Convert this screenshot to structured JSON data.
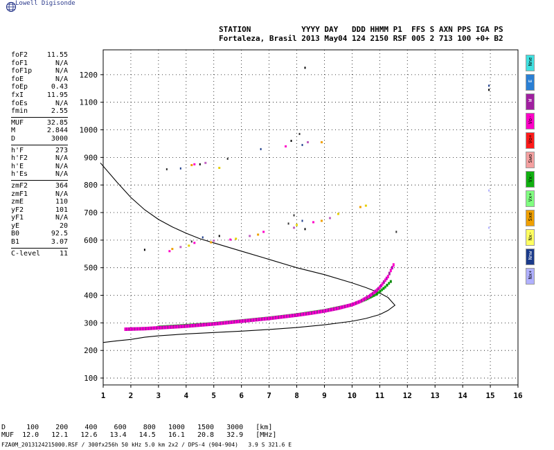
{
  "brand": "Lowell Digisonde",
  "header": {
    "line1": "STATION           YYYY DAY   DDD HHMM P1  FFS S AXN PPS IGA PS",
    "line2": "Fortaleza, Brasil 2013 May04 124 2150 RSF 005 2 713 100 +0+ B2"
  },
  "params": [
    {
      "k": "foF2",
      "v": "11.55"
    },
    {
      "k": "foF1",
      "v": "N/A"
    },
    {
      "k": "foF1p",
      "v": "N/A"
    },
    {
      "k": "foE",
      "v": "N/A"
    },
    {
      "k": "foEp",
      "v": "0.43"
    },
    {
      "k": "fxI",
      "v": "11.95"
    },
    {
      "k": "foEs",
      "v": "N/A"
    },
    {
      "k": "fmin",
      "v": "2.55"
    },
    {
      "sep": true
    },
    {
      "k": "MUF",
      "v": "32.85"
    },
    {
      "k": "M",
      "v": "2.844"
    },
    {
      "k": "D",
      "v": "3000"
    },
    {
      "sep": true
    },
    {
      "k": "h'F",
      "v": "273"
    },
    {
      "k": "h'F2",
      "v": "N/A"
    },
    {
      "k": "h'E",
      "v": "N/A"
    },
    {
      "k": "h'Es",
      "v": "N/A"
    },
    {
      "sep": true
    },
    {
      "k": "zmF2",
      "v": "364"
    },
    {
      "k": "zmF1",
      "v": "N/A"
    },
    {
      "k": "zmE",
      "v": "110"
    },
    {
      "k": "yF2",
      "v": "101"
    },
    {
      "k": "yF1",
      "v": "N/A"
    },
    {
      "k": "yE",
      "v": "20"
    },
    {
      "k": "B0",
      "v": "92.5"
    },
    {
      "k": "B1",
      "v": "3.07"
    },
    {
      "sep": true
    },
    {
      "k": "C-level",
      "v": "11"
    }
  ],
  "legend": [
    {
      "label": "Nne",
      "color": "#40e0e0"
    },
    {
      "label": "E",
      "color": "#2a7fd4"
    },
    {
      "label": "W",
      "color": "#a020a0"
    },
    {
      "label": "Vo-",
      "color": "#ff00c8"
    },
    {
      "label": "Vo+",
      "color": "#ff1a1a"
    },
    {
      "label": "Swo",
      "color": "#f4a0a0"
    },
    {
      "label": "Vx-",
      "color": "#10b010"
    },
    {
      "label": "Vx+",
      "color": "#80ff80"
    },
    {
      "label": "Sxe",
      "color": "#f0a000"
    },
    {
      "label": "Nx-",
      "color": "#ffff60"
    },
    {
      "label": "Nnw",
      "color": "#1a3a8a"
    },
    {
      "label": "Nx+",
      "color": "#b0b0ff"
    }
  ],
  "muf_table": {
    "line1": "D     100    200    400    600    800   1000   1500   3000   [km]",
    "line2": "MUF  12.0   12.1   12.6   13.4   14.5   16.1   20.8   32.9   [MHz]"
  },
  "footer": "FZA0M_2013124215000.RSF / 300fx256h 50 kHz 5.0 km 2x2 / DPS-4 (904-904)   3.9 S 321.6 E",
  "chart_data": {
    "type": "scatter",
    "title": "",
    "xlabel": "",
    "ylabel": "",
    "xlim": [
      1,
      16
    ],
    "ylim": [
      75,
      1290
    ],
    "xticks": [
      1,
      2,
      3,
      4,
      5,
      6,
      7,
      8,
      9,
      10,
      11,
      12,
      13,
      14,
      15,
      16
    ],
    "yticks": [
      100,
      200,
      300,
      400,
      500,
      600,
      700,
      800,
      900,
      1000,
      1100,
      1200
    ],
    "grid": true,
    "profile_curve": [
      {
        "f": 0.9,
        "h": 880
      },
      {
        "f": 1.5,
        "h": 810
      },
      {
        "f": 2.0,
        "h": 755
      },
      {
        "f": 2.5,
        "h": 710
      },
      {
        "f": 3.0,
        "h": 675
      },
      {
        "f": 3.5,
        "h": 648
      },
      {
        "f": 4.0,
        "h": 625
      },
      {
        "f": 4.5,
        "h": 605
      },
      {
        "f": 5.0,
        "h": 590
      },
      {
        "f": 6.0,
        "h": 560
      },
      {
        "f": 7.0,
        "h": 530
      },
      {
        "f": 8.0,
        "h": 500
      },
      {
        "f": 9.0,
        "h": 475
      },
      {
        "f": 10.0,
        "h": 445
      },
      {
        "f": 10.5,
        "h": 428
      },
      {
        "f": 11.0,
        "h": 408
      },
      {
        "f": 11.3,
        "h": 392
      },
      {
        "f": 11.55,
        "h": 364
      },
      {
        "f": 11.3,
        "h": 345
      },
      {
        "f": 11.0,
        "h": 330
      },
      {
        "f": 10.5,
        "h": 316
      },
      {
        "f": 10.0,
        "h": 306
      },
      {
        "f": 9.0,
        "h": 293
      },
      {
        "f": 8.0,
        "h": 283
      },
      {
        "f": 7.0,
        "h": 276
      },
      {
        "f": 6.0,
        "h": 270
      },
      {
        "f": 5.0,
        "h": 265
      },
      {
        "f": 4.0,
        "h": 260
      },
      {
        "f": 3.0,
        "h": 253
      },
      {
        "f": 2.5,
        "h": 248
      },
      {
        "f": 2.0,
        "h": 240
      },
      {
        "f": 1.5,
        "h": 235
      },
      {
        "f": 1.0,
        "h": 229
      }
    ],
    "trace_o": [
      {
        "f": 1.8,
        "h": 277
      },
      {
        "f": 2.5,
        "h": 279
      },
      {
        "f": 3.0,
        "h": 282
      },
      {
        "f": 3.5,
        "h": 285
      },
      {
        "f": 4.0,
        "h": 288
      },
      {
        "f": 4.5,
        "h": 292
      },
      {
        "f": 5.0,
        "h": 296
      },
      {
        "f": 5.5,
        "h": 301
      },
      {
        "f": 6.0,
        "h": 306
      },
      {
        "f": 6.5,
        "h": 311
      },
      {
        "f": 7.0,
        "h": 316
      },
      {
        "f": 7.5,
        "h": 322
      },
      {
        "f": 8.0,
        "h": 328
      },
      {
        "f": 8.5,
        "h": 335
      },
      {
        "f": 9.0,
        "h": 343
      },
      {
        "f": 9.5,
        "h": 353
      },
      {
        "f": 10.0,
        "h": 366
      },
      {
        "f": 10.3,
        "h": 378
      },
      {
        "f": 10.6,
        "h": 395
      },
      {
        "f": 10.8,
        "h": 410
      },
      {
        "f": 11.0,
        "h": 428
      },
      {
        "f": 11.15,
        "h": 448
      },
      {
        "f": 11.3,
        "h": 468
      },
      {
        "f": 11.4,
        "h": 490
      },
      {
        "f": 11.5,
        "h": 510
      }
    ],
    "trace_x": [
      {
        "f": 3.0,
        "h": 285
      },
      {
        "f": 3.5,
        "h": 288
      },
      {
        "f": 4.0,
        "h": 291
      },
      {
        "f": 5.0,
        "h": 298
      },
      {
        "f": 6.0,
        "h": 308
      },
      {
        "f": 7.0,
        "h": 318
      },
      {
        "f": 8.0,
        "h": 330
      },
      {
        "f": 9.0,
        "h": 345
      },
      {
        "f": 10.0,
        "h": 366
      },
      {
        "f": 10.5,
        "h": 385
      },
      {
        "f": 10.9,
        "h": 405
      },
      {
        "f": 11.2,
        "h": 430
      },
      {
        "f": 11.4,
        "h": 450
      }
    ],
    "echoes_dark": [
      {
        "f": 2.5,
        "h": 565
      },
      {
        "f": 3.3,
        "h": 857
      },
      {
        "f": 3.8,
        "h": 860
      },
      {
        "f": 4.5,
        "h": 875
      },
      {
        "f": 5.5,
        "h": 895
      },
      {
        "f": 6.7,
        "h": 930
      },
      {
        "f": 7.8,
        "h": 960
      },
      {
        "f": 8.1,
        "h": 985
      },
      {
        "f": 8.2,
        "h": 945
      },
      {
        "f": 8.3,
        "h": 1225
      },
      {
        "f": 4.2,
        "h": 595
      },
      {
        "f": 4.6,
        "h": 610
      },
      {
        "f": 5.2,
        "h": 615
      },
      {
        "f": 7.9,
        "h": 690
      },
      {
        "f": 8.2,
        "h": 670
      },
      {
        "f": 8.3,
        "h": 640
      },
      {
        "f": 7.7,
        "h": 660
      },
      {
        "f": 14.95,
        "h": 1160
      },
      {
        "f": 14.95,
        "h": 1145
      },
      {
        "f": 11.6,
        "h": 630
      }
    ],
    "echoes_o_high": [
      {
        "f": 3.4,
        "h": 560
      },
      {
        "f": 3.8,
        "h": 575
      },
      {
        "f": 4.3,
        "h": 590
      },
      {
        "f": 5.0,
        "h": 598
      },
      {
        "f": 5.6,
        "h": 602
      },
      {
        "f": 6.3,
        "h": 615
      },
      {
        "f": 6.8,
        "h": 630
      },
      {
        "f": 7.9,
        "h": 645
      },
      {
        "f": 8.6,
        "h": 665
      },
      {
        "f": 9.2,
        "h": 680
      },
      {
        "f": 4.3,
        "h": 875
      },
      {
        "f": 4.7,
        "h": 880
      },
      {
        "f": 7.6,
        "h": 940
      },
      {
        "f": 8.4,
        "h": 955
      }
    ],
    "echoes_yellow": [
      {
        "f": 3.5,
        "h": 568
      },
      {
        "f": 4.1,
        "h": 580
      },
      {
        "f": 4.9,
        "h": 592
      },
      {
        "f": 5.8,
        "h": 605
      },
      {
        "f": 6.6,
        "h": 620
      },
      {
        "f": 8.0,
        "h": 655
      },
      {
        "f": 8.9,
        "h": 670
      },
      {
        "f": 9.5,
        "h": 695
      },
      {
        "f": 10.3,
        "h": 720
      },
      {
        "f": 10.5,
        "h": 725
      },
      {
        "f": 4.2,
        "h": 872
      },
      {
        "f": 5.2,
        "h": 862
      },
      {
        "f": 8.9,
        "h": 955
      }
    ],
    "echoes_faint": [
      {
        "f": 14.95,
        "h": 780
      },
      {
        "f": 14.95,
        "h": 645
      }
    ]
  }
}
